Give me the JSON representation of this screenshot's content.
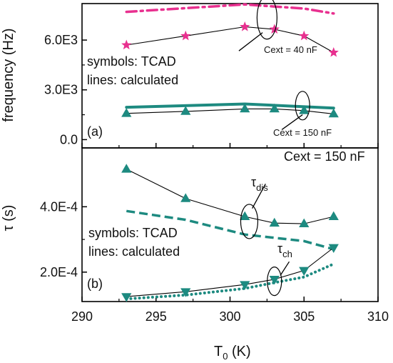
{
  "colors": {
    "axis": "#000000",
    "teal": "#1d8a80",
    "magenta": "#e8308f",
    "marker_line": "#000000"
  },
  "chart_data": [
    {
      "panel_label": "(a)",
      "type": "line",
      "ylabel": "frequency (Hz)",
      "xlim": [
        290,
        310
      ],
      "ylim": [
        -500,
        8200
      ],
      "yticks": [
        0.0,
        3000,
        6000
      ],
      "ytick_labels": [
        "0.0",
        "3.0E3",
        "6.0E3"
      ],
      "legend_text": [
        "symbols: TCAD",
        "lines: calculated"
      ],
      "annotations": [
        "Cext = 40 nF",
        "Cext = 150 nF"
      ],
      "series": [
        {
          "kind": "calculated",
          "style": "dashdot",
          "color": "magenta",
          "x": [
            293,
            301,
            305,
            307
          ],
          "y": [
            7700,
            8150,
            7900,
            7600
          ]
        },
        {
          "kind": "TCAD",
          "marker": "star",
          "color": "magenta",
          "x": [
            293,
            297,
            301,
            303,
            305,
            307
          ],
          "y": [
            5700,
            6250,
            6800,
            6650,
            6250,
            5250
          ]
        },
        {
          "kind": "calculated",
          "style": "solid",
          "color": "teal",
          "x": [
            293,
            301,
            307
          ],
          "y": [
            1950,
            2150,
            1900
          ]
        },
        {
          "kind": "TCAD",
          "marker": "triangle-up",
          "color": "teal",
          "x": [
            293,
            297,
            301,
            303,
            305,
            307
          ],
          "y": [
            1580,
            1700,
            1850,
            1850,
            1750,
            1550
          ]
        }
      ]
    },
    {
      "panel_label": "(b)",
      "type": "line",
      "ylabel": "τ (s)",
      "xlabel": "T0 (K)",
      "xlim": [
        290,
        310
      ],
      "ylim": [
        0.00011,
        0.00058
      ],
      "xticks": [
        290,
        295,
        300,
        305,
        310
      ],
      "xtick_labels": [
        "290",
        "295",
        "300",
        "305",
        "310"
      ],
      "yticks": [
        0.0002,
        0.0004
      ],
      "ytick_labels": [
        "2.0E-4",
        "4.0E-4"
      ],
      "legend_text": [
        "symbols: TCAD",
        "lines: calculated"
      ],
      "annotations": [
        "Cext = 150 nF",
        "τdis",
        "τch"
      ],
      "series": [
        {
          "kind": "TCAD",
          "name": "τdis",
          "marker": "triangle-up",
          "color": "teal",
          "x": [
            293,
            297,
            301,
            303,
            305,
            307
          ],
          "y": [
            0.000515,
            0.000425,
            0.00037,
            0.00035,
            0.000348,
            0.00037
          ]
        },
        {
          "kind": "calculated",
          "name": "τdis",
          "style": "dashed",
          "color": "teal",
          "x": [
            293,
            297,
            301,
            305,
            307
          ],
          "y": [
            0.000387,
            0.00036,
            0.000315,
            0.000295,
            0.00027
          ]
        },
        {
          "kind": "TCAD",
          "name": "τch",
          "marker": "triangle-down",
          "color": "teal",
          "x": [
            293,
            297,
            301,
            303,
            305,
            307
          ],
          "y": [
            0.000125,
            0.00014,
            0.000162,
            0.000178,
            0.000205,
            0.000275
          ]
        },
        {
          "kind": "calculated",
          "name": "τch",
          "style": "dotted",
          "color": "teal",
          "x": [
            293,
            297,
            301,
            303,
            305,
            307
          ],
          "y": [
            0.000118,
            0.00013,
            0.00015,
            0.000168,
            0.000185,
            0.000225
          ]
        }
      ]
    }
  ]
}
